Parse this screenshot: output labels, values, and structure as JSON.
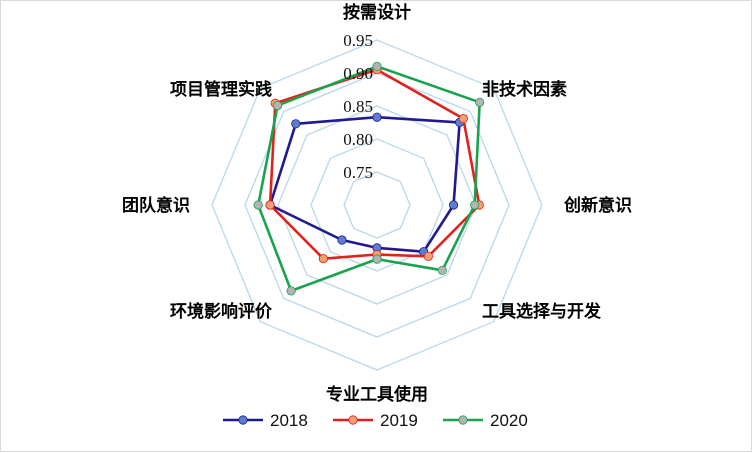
{
  "chart_data": {
    "type": "radar",
    "title": "",
    "categories": [
      "按需设计",
      "非技术因素",
      "创新意识",
      "工具选择与开发",
      "专业工具使用",
      "环境影响评价",
      "团队意识",
      "项目管理实践"
    ],
    "rlim": [
      0.7,
      0.95
    ],
    "ticks": [
      0.75,
      0.8,
      0.85,
      0.9,
      0.95
    ],
    "tick_labels": [
      "0.75",
      "0.80",
      "0.85",
      "0.90",
      "0.95"
    ],
    "grid": true,
    "legend_position": "bottom",
    "series": [
      {
        "name": "2018",
        "color": "#1f1a8f",
        "marker": "#5b7fd0",
        "values": [
          0.833,
          0.877,
          0.816,
          0.8,
          0.765,
          0.775,
          0.862,
          0.874
        ]
      },
      {
        "name": "2019",
        "color": "#e0211d",
        "marker": "#f2a070",
        "values": [
          0.905,
          0.885,
          0.855,
          0.81,
          0.775,
          0.815,
          0.862,
          0.918
        ]
      },
      {
        "name": "2020",
        "color": "#1aa34f",
        "marker": "#b3b3b3",
        "values": [
          0.91,
          0.92,
          0.848,
          0.84,
          0.782,
          0.884,
          0.88,
          0.913
        ]
      }
    ]
  }
}
